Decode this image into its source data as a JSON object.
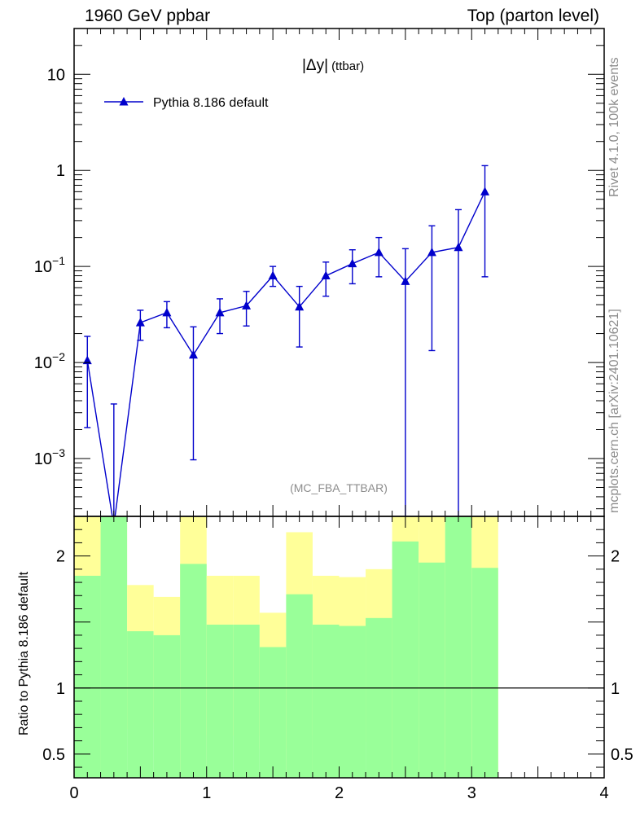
{
  "header": {
    "left": "1960 GeV ppbar",
    "right": "Top (parton level)"
  },
  "side_labels": {
    "rivet": "Rivet 4.1.0,  100k events",
    "mcplots": "mcplots.cern.ch [arXiv:2401.10621]"
  },
  "colors": {
    "series": "#0000cc",
    "band_inner": "#99ff99",
    "band_outer": "#ffff99",
    "axis": "#000000",
    "watermark": "#8c8c8c"
  },
  "chart_data": [
    {
      "type": "scatter",
      "title": "|Δy|",
      "title_suffix": "(ttbar)",
      "watermark": "(MC_FBA_TTBAR)",
      "yscale": "log",
      "xlim": [
        0,
        4
      ],
      "ylim": [
        0.00025,
        30
      ],
      "yticks": [
        {
          "value": 10,
          "label": "10"
        },
        {
          "value": 1,
          "label": "1"
        },
        {
          "value": 0.1,
          "base": "10",
          "exp": "−1"
        },
        {
          "value": 0.01,
          "base": "10",
          "exp": "−2"
        },
        {
          "value": 0.001,
          "base": "10",
          "exp": "−3"
        }
      ],
      "legend_position": "top-left",
      "series": [
        {
          "name": "Pythia 8.186 default",
          "marker": "triangle",
          "x": [
            0.1,
            0.3,
            0.5,
            0.7,
            0.9,
            1.1,
            1.3,
            1.5,
            1.7,
            1.9,
            2.1,
            2.3,
            2.5,
            2.7,
            2.9,
            3.1
          ],
          "y": [
            0.0105,
            0.0002,
            0.026,
            0.033,
            0.012,
            0.033,
            0.039,
            0.08,
            0.038,
            0.08,
            0.107,
            0.14,
            0.07,
            0.14,
            0.158,
            0.6
          ],
          "ylow": [
            0.0021,
            0.0001,
            0.017,
            0.023,
            0.00097,
            0.02,
            0.024,
            0.062,
            0.0145,
            0.049,
            0.066,
            0.078,
            0.0001,
            0.0133,
            0.0001,
            0.078
          ],
          "yhigh": [
            0.0187,
            0.0037,
            0.035,
            0.043,
            0.0235,
            0.046,
            0.055,
            0.1,
            0.062,
            0.111,
            0.149,
            0.2,
            0.153,
            0.265,
            0.39,
            1.12
          ]
        }
      ]
    },
    {
      "type": "area",
      "title": "",
      "ylabel": "Ratio to Pythia 8.186 default",
      "xlim": [
        0,
        4
      ],
      "ylim": [
        0.32,
        2.3
      ],
      "xticks": [
        {
          "value": 0,
          "label": "0"
        },
        {
          "value": 1,
          "label": "1"
        },
        {
          "value": 2,
          "label": "2"
        },
        {
          "value": 3,
          "label": "3"
        },
        {
          "value": 4,
          "label": "4"
        }
      ],
      "yticks": [
        {
          "value": 2,
          "label": "2"
        },
        {
          "value": 1,
          "label": "1"
        },
        {
          "value": 0.5,
          "label": "0.5"
        }
      ],
      "reference_line": 1,
      "bins": [
        {
          "x0": 0.0,
          "x1": 0.2,
          "in_lo": 0.0,
          "in_hi": 1.85,
          "out_lo": 0.0,
          "out_hi": 2.3
        },
        {
          "x0": 0.2,
          "x1": 0.4,
          "in_lo": 0.0,
          "in_hi": 2.3,
          "out_lo": 0.0,
          "out_hi": 2.3
        },
        {
          "x0": 0.4,
          "x1": 0.6,
          "in_lo": 0.0,
          "in_hi": 1.43,
          "out_lo": 0.69,
          "out_hi": 1.78
        },
        {
          "x0": 0.6,
          "x1": 0.8,
          "in_lo": 0.0,
          "in_hi": 1.4,
          "out_lo": 0.74,
          "out_hi": 1.69
        },
        {
          "x0": 0.8,
          "x1": 1.0,
          "in_lo": 0.0,
          "in_hi": 1.94,
          "out_lo": 0.0,
          "out_hi": 2.3
        },
        {
          "x0": 1.0,
          "x1": 1.2,
          "in_lo": 0.0,
          "in_hi": 1.48,
          "out_lo": 0.64,
          "out_hi": 1.85
        },
        {
          "x0": 1.2,
          "x1": 1.4,
          "in_lo": 0.0,
          "in_hi": 1.48,
          "out_lo": 0.64,
          "out_hi": 1.85
        },
        {
          "x0": 1.4,
          "x1": 1.6,
          "in_lo": 0.0,
          "in_hi": 1.31,
          "out_lo": 0.54,
          "out_hi": 1.57
        },
        {
          "x0": 1.6,
          "x1": 1.8,
          "in_lo": 0.0,
          "in_hi": 1.71,
          "out_lo": 0.0,
          "out_hi": 2.18
        },
        {
          "x0": 1.8,
          "x1": 2.0,
          "in_lo": 0.0,
          "in_hi": 1.48,
          "out_lo": 0.64,
          "out_hi": 1.85
        },
        {
          "x0": 2.0,
          "x1": 2.2,
          "in_lo": 0.0,
          "in_hi": 1.47,
          "out_lo": 0.65,
          "out_hi": 1.84
        },
        {
          "x0": 2.2,
          "x1": 2.4,
          "in_lo": 0.0,
          "in_hi": 1.53,
          "out_lo": 0.59,
          "out_hi": 1.9
        },
        {
          "x0": 2.4,
          "x1": 2.6,
          "in_lo": 0.0,
          "in_hi": 2.11,
          "out_lo": 0.0,
          "out_hi": 2.3
        },
        {
          "x0": 2.6,
          "x1": 2.8,
          "in_lo": 0.0,
          "in_hi": 1.95,
          "out_lo": 0.0,
          "out_hi": 2.3
        },
        {
          "x0": 2.8,
          "x1": 3.0,
          "in_lo": 0.0,
          "in_hi": 2.3,
          "out_lo": 0.0,
          "out_hi": 2.3
        },
        {
          "x0": 3.0,
          "x1": 3.2,
          "in_lo": 0.0,
          "in_hi": 1.91,
          "out_lo": 0.0,
          "out_hi": 2.3
        }
      ]
    }
  ]
}
